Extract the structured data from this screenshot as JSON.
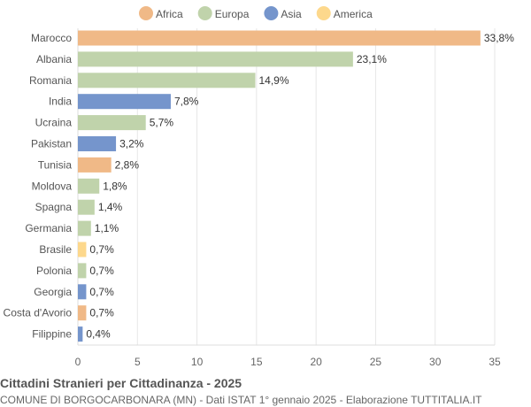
{
  "chart_data": {
    "type": "bar",
    "orientation": "horizontal",
    "title": "Cittadini Stranieri per Cittadinanza - 2025",
    "subtitle": "COMUNE DI BORGOCARBONARA (MN) - Dati ISTAT 1° gennaio 2025 - Elaborazione TUTTITALIA.IT",
    "legend": [
      {
        "name": "Africa",
        "color": "#f0b987"
      },
      {
        "name": "Europa",
        "color": "#c0d3ab"
      },
      {
        "name": "Asia",
        "color": "#7595cc"
      },
      {
        "name": "America",
        "color": "#fdd88c"
      }
    ],
    "legend_position": "top",
    "categories": [
      "Marocco",
      "Albania",
      "Romania",
      "India",
      "Ucraina",
      "Pakistan",
      "Tunisia",
      "Moldova",
      "Spagna",
      "Germania",
      "Brasile",
      "Polonia",
      "Georgia",
      "Costa d'Avorio",
      "Filippine"
    ],
    "values": [
      33.8,
      23.1,
      14.9,
      7.8,
      5.7,
      3.2,
      2.8,
      1.8,
      1.4,
      1.1,
      0.7,
      0.7,
      0.7,
      0.7,
      0.4
    ],
    "labels": [
      "33,8%",
      "23,1%",
      "14,9%",
      "7,8%",
      "5,7%",
      "3,2%",
      "2,8%",
      "1,8%",
      "1,4%",
      "1,1%",
      "0,7%",
      "0,7%",
      "0,7%",
      "0,7%",
      "0,4%"
    ],
    "groups": [
      "Africa",
      "Europa",
      "Europa",
      "Asia",
      "Europa",
      "Asia",
      "Africa",
      "Europa",
      "Europa",
      "Europa",
      "America",
      "Europa",
      "Asia",
      "Africa",
      "Asia"
    ],
    "xlim": [
      0,
      35
    ],
    "xticks": [
      0,
      5,
      10,
      15,
      20,
      25,
      30,
      35
    ],
    "grid": true
  }
}
